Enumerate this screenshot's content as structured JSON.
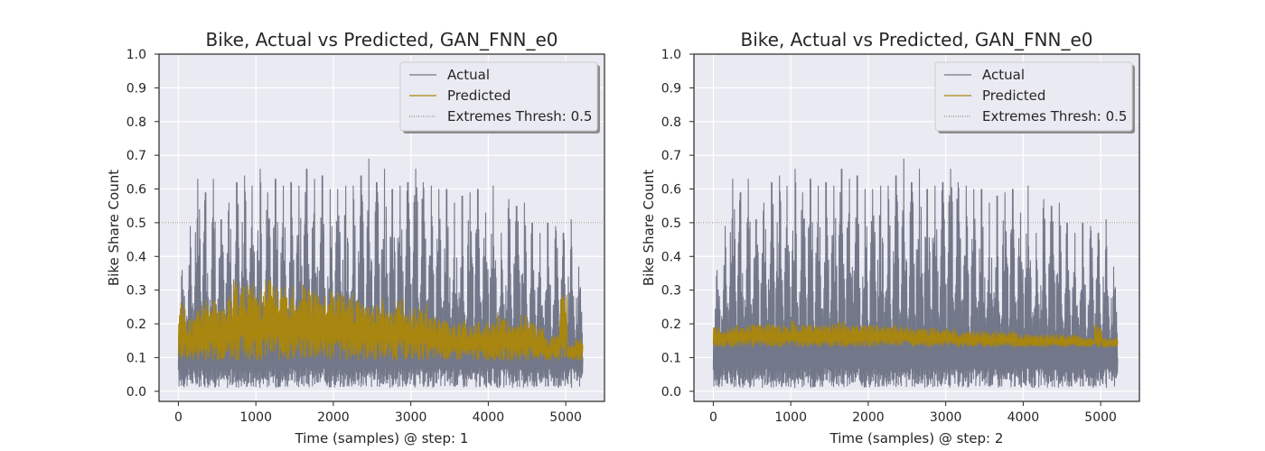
{
  "colors": {
    "plot_bg": "#eaeaf2",
    "grid": "#ffffff",
    "actual": "#727789",
    "predicted": "#a8860f",
    "threshold": "#555555"
  },
  "chart_data": [
    {
      "type": "line",
      "title": "Bike, Actual vs Predicted, GAN_FNN_e0",
      "xlabel": "Time (samples) @ step: 1",
      "ylabel": "Bike Share Count",
      "xlim": [
        -250,
        5500
      ],
      "ylim": [
        -0.03,
        1.0
      ],
      "xticks": [
        0,
        1000,
        2000,
        3000,
        4000,
        5000
      ],
      "xtick_labels": [
        "0",
        "1000",
        "2000",
        "3000",
        "4000",
        "5000"
      ],
      "yticks": [
        0.0,
        0.1,
        0.2,
        0.3,
        0.4,
        0.5,
        0.6,
        0.7,
        0.8,
        0.9,
        1.0
      ],
      "ytick_labels": [
        "0.0",
        "0.1",
        "0.2",
        "0.3",
        "0.4",
        "0.5",
        "0.6",
        "0.7",
        "0.8",
        "0.9",
        "1.0"
      ],
      "grid": true,
      "legend_position": "top-right",
      "threshold": 0.5,
      "series": [
        {
          "name": "Actual",
          "x_range": [
            0,
            5220
          ],
          "baseline": 0.1,
          "trough": 0.01,
          "peaks": [
            0.36,
            0.49,
            0.63,
            0.59,
            0.63,
            0.51,
            0.56,
            0.62,
            0.64,
            0.61,
            0.66,
            0.59,
            0.63,
            0.61,
            0.62,
            0.61,
            0.66,
            0.63,
            0.64,
            0.6,
            0.6,
            0.61,
            0.61,
            0.64,
            0.69,
            0.62,
            0.66,
            0.6,
            0.61,
            0.62,
            0.66,
            0.62,
            0.61,
            0.6,
            0.6,
            0.56,
            0.58,
            0.59,
            0.6,
            0.53,
            0.61,
            0.47,
            0.57,
            0.55,
            0.56,
            0.5,
            0.47,
            0.5,
            0.49,
            0.47,
            0.51,
            0.37
          ]
        },
        {
          "name": "Predicted",
          "x_range": [
            0,
            5220
          ],
          "low": 0.09,
          "peaks": [
            0.27,
            0.22,
            0.25,
            0.27,
            0.28,
            0.25,
            0.29,
            0.33,
            0.32,
            0.33,
            0.3,
            0.35,
            0.33,
            0.31,
            0.31,
            0.32,
            0.34,
            0.31,
            0.29,
            0.31,
            0.3,
            0.29,
            0.29,
            0.29,
            0.26,
            0.28,
            0.28,
            0.27,
            0.28,
            0.26,
            0.25,
            0.26,
            0.23,
            0.23,
            0.22,
            0.2,
            0.22,
            0.2,
            0.22,
            0.21,
            0.21,
            0.23,
            0.21,
            0.2,
            0.23,
            0.21,
            0.19,
            0.16,
            0.17,
            0.29,
            0.14,
            0.17
          ]
        },
        {
          "name": "Extremes Thresh: 0.5",
          "y": 0.5
        }
      ]
    },
    {
      "type": "line",
      "title": "Bike, Actual vs Predicted, GAN_FNN_e0",
      "xlabel": "Time (samples) @ step: 2",
      "ylabel": "Bike Share Count",
      "xlim": [
        -250,
        5500
      ],
      "ylim": [
        -0.03,
        1.0
      ],
      "xticks": [
        0,
        1000,
        2000,
        3000,
        4000,
        5000
      ],
      "xtick_labels": [
        "0",
        "1000",
        "2000",
        "3000",
        "4000",
        "5000"
      ],
      "yticks": [
        0.0,
        0.1,
        0.2,
        0.3,
        0.4,
        0.5,
        0.6,
        0.7,
        0.8,
        0.9,
        1.0
      ],
      "ytick_labels": [
        "0.0",
        "0.1",
        "0.2",
        "0.3",
        "0.4",
        "0.5",
        "0.6",
        "0.7",
        "0.8",
        "0.9",
        "1.0"
      ],
      "grid": true,
      "legend_position": "top-right",
      "threshold": 0.5,
      "series": [
        {
          "name": "Actual",
          "x_range": [
            0,
            5220
          ],
          "baseline": 0.1,
          "trough": 0.01,
          "peaks": [
            0.36,
            0.49,
            0.63,
            0.59,
            0.63,
            0.51,
            0.56,
            0.62,
            0.64,
            0.61,
            0.66,
            0.59,
            0.63,
            0.61,
            0.62,
            0.61,
            0.66,
            0.63,
            0.64,
            0.6,
            0.6,
            0.61,
            0.61,
            0.64,
            0.69,
            0.62,
            0.66,
            0.6,
            0.61,
            0.62,
            0.66,
            0.62,
            0.61,
            0.6,
            0.6,
            0.56,
            0.58,
            0.59,
            0.6,
            0.53,
            0.61,
            0.47,
            0.57,
            0.55,
            0.56,
            0.5,
            0.47,
            0.5,
            0.49,
            0.47,
            0.51,
            0.37
          ]
        },
        {
          "name": "Predicted",
          "x_range": [
            0,
            5220
          ],
          "low": 0.13,
          "peaks": [
            0.19,
            0.19,
            0.2,
            0.2,
            0.2,
            0.2,
            0.2,
            0.2,
            0.2,
            0.2,
            0.21,
            0.2,
            0.2,
            0.2,
            0.2,
            0.2,
            0.21,
            0.2,
            0.2,
            0.2,
            0.2,
            0.2,
            0.2,
            0.2,
            0.2,
            0.19,
            0.19,
            0.19,
            0.19,
            0.19,
            0.19,
            0.18,
            0.18,
            0.18,
            0.18,
            0.18,
            0.18,
            0.18,
            0.18,
            0.17,
            0.17,
            0.17,
            0.17,
            0.17,
            0.17,
            0.17,
            0.17,
            0.16,
            0.16,
            0.2,
            0.16,
            0.16
          ]
        },
        {
          "name": "Extremes Thresh: 0.5",
          "y": 0.5
        }
      ]
    }
  ]
}
